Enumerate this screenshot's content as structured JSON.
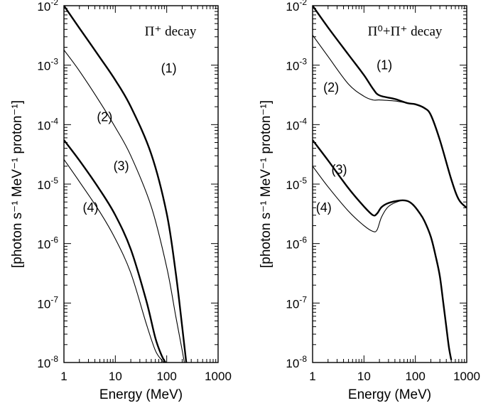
{
  "chart_data": [
    {
      "type": "line",
      "annotation": "Π⁺ decay",
      "xlabel": "Energy (MeV)",
      "ylabel": "[photon s⁻¹ MeV⁻¹ proton⁻¹]",
      "xscale": "log",
      "yscale": "log",
      "xlim": [
        1,
        1000
      ],
      "ylim": [
        1e-08,
        0.01
      ],
      "xticks": [
        "1",
        "10",
        "100",
        "1000"
      ],
      "yticks": [
        "10-8",
        "10-7",
        "10-6",
        "10-5",
        "10-4",
        "10-3",
        "10-2"
      ],
      "series": [
        {
          "label": "(1)",
          "weight": "thick",
          "x": [
            1,
            2,
            5,
            10,
            20,
            50,
            100,
            150,
            200,
            240
          ],
          "y": [
            0.01,
            0.0042,
            0.00135,
            0.00056,
            0.0002,
            3.2e-05,
            3.2e-06,
            3.2e-07,
            4e-08,
            1e-08
          ]
        },
        {
          "label": "(2)",
          "weight": "thin",
          "x": [
            1,
            2,
            5,
            10,
            20,
            50,
            100,
            150,
            200,
            220
          ],
          "y": [
            0.0018,
            0.0008,
            0.00024,
            9e-05,
            3e-05,
            4.2e-06,
            4e-07,
            6e-08,
            1.6e-08,
            1e-08
          ]
        },
        {
          "label": "(3)",
          "weight": "thick",
          "x": [
            1,
            2,
            5,
            10,
            20,
            40,
            60,
            80,
            95
          ],
          "y": [
            5.5e-05,
            2.5e-05,
            8e-06,
            3e-06,
            8e-07,
            1.1e-07,
            2.6e-08,
            1.3e-08,
            1e-08
          ]
        },
        {
          "label": "(4)",
          "weight": "thin",
          "x": [
            1,
            2,
            5,
            10,
            20,
            40,
            60,
            80,
            90
          ],
          "y": [
            2.6e-05,
            1.1e-05,
            3.4e-06,
            1.2e-06,
            3.2e-07,
            4.5e-08,
            1.6e-08,
            1.1e-08,
            1e-08
          ]
        }
      ],
      "labels": [
        {
          "text": "(1)",
          "x": 110,
          "y": 0.00075
        },
        {
          "text": "(2)",
          "x": 6.2,
          "y": 0.000115
        },
        {
          "text": "(3)",
          "x": 13,
          "y": 1.7e-05
        },
        {
          "text": "(4)",
          "x": 3.3,
          "y": 3.4e-06
        }
      ]
    },
    {
      "type": "line",
      "annotation": "Π⁰+Π⁺ decay",
      "xlabel": "Energy (MeV)",
      "ylabel": "[photon s⁻¹ MeV⁻¹ proton⁻¹]",
      "xscale": "log",
      "yscale": "log",
      "xlim": [
        1,
        1000
      ],
      "ylim": [
        1e-08,
        0.01
      ],
      "xticks": [
        "1",
        "10",
        "100",
        "1000"
      ],
      "yticks": [
        "10-8",
        "10-7",
        "10-6",
        "10-5",
        "10-4",
        "10-3",
        "10-2"
      ],
      "series": [
        {
          "label": "(1)",
          "weight": "thick",
          "x": [
            1,
            2,
            5,
            10,
            15,
            20,
            40,
            70,
            100,
            150,
            200,
            300,
            500,
            700,
            1000
          ],
          "y": [
            0.01,
            0.0043,
            0.0015,
            0.00068,
            0.0004,
            0.00031,
            0.00027,
            0.00023,
            0.00022,
            0.00019,
            0.000145,
            5.5e-05,
            1.2e-05,
            5.5e-06,
            4e-06
          ]
        },
        {
          "label": "(2)",
          "weight": "thin",
          "x": [
            1,
            2,
            5,
            10,
            15,
            20,
            40,
            70,
            100,
            150,
            200,
            300,
            500,
            700,
            1000
          ],
          "y": [
            0.0032,
            0.0014,
            0.00048,
            0.0003,
            0.00026,
            0.00026,
            0.00025,
            0.00023,
            0.00022,
            0.00019,
            0.000145,
            5.5e-05,
            1.2e-05,
            5.5e-06,
            4e-06
          ]
        },
        {
          "label": "(3)",
          "weight": "thick",
          "x": [
            1,
            2,
            5,
            10,
            15,
            18,
            22,
            30,
            50,
            70,
            90,
            120,
            150,
            200,
            250,
            300,
            350,
            400,
            450,
            500
          ],
          "y": [
            5.5e-05,
            2.5e-05,
            8.5e-06,
            4.2e-06,
            3e-06,
            3.2e-06,
            4.1e-06,
            4.8e-06,
            5.3e-06,
            5.2e-06,
            4.5e-06,
            3.3e-06,
            2.4e-06,
            1.3e-06,
            6e-07,
            2.8e-07,
            1e-07,
            4e-08,
            1.8e-08,
            1.1e-08
          ]
        },
        {
          "label": "(4)",
          "weight": "thin",
          "x": [
            1,
            2,
            5,
            10,
            15,
            18,
            22,
            30,
            50,
            70,
            90,
            120,
            150,
            200
          ],
          "y": [
            2e-05,
            9e-06,
            3.5e-06,
            2e-06,
            1.6e-06,
            1.7e-06,
            2.8e-06,
            4.2e-06,
            5.2e-06,
            5.2e-06,
            4.5e-06,
            3.3e-06,
            2.4e-06,
            1.3e-06
          ]
        }
      ],
      "labels": [
        {
          "text": "(1)",
          "x": 25,
          "y": 0.00085
        },
        {
          "text": "(2)",
          "x": 2.3,
          "y": 0.00036
        },
        {
          "text": "(3)",
          "x": 3.3,
          "y": 1.5e-05
        },
        {
          "text": "(4)",
          "x": 1.65,
          "y": 3.4e-06
        }
      ]
    }
  ]
}
